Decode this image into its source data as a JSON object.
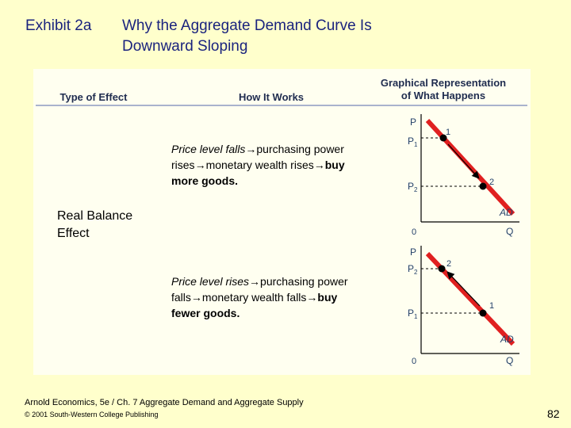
{
  "title": {
    "label": "Exhibit 2a",
    "line1": "Why the Aggregate Demand Curve Is",
    "line2": "Downward Sloping"
  },
  "table": {
    "headers": {
      "type_of_effect": "Type of Effect",
      "how_it_works": "How It Works",
      "graph_line1": "Graphical Representation",
      "graph_line2": "of What Happens"
    },
    "effect_name": {
      "line1": "Real Balance",
      "line2": "Effect"
    },
    "rows": [
      {
        "lead": "Price level falls",
        "part1": "purchasing power",
        "part2": "rises",
        "part3": "monetary wealth rises",
        "part4": "buy",
        "part5": "more goods."
      },
      {
        "lead": "Price level rises",
        "part1": "purchasing power",
        "part2": "falls",
        "part3": "monetary wealth falls",
        "part4": "buy",
        "part5": "fewer goods."
      }
    ],
    "arrow_glyph": "→"
  },
  "graphs": [
    {
      "y_axis": "P",
      "x_axis": "Q",
      "origin": "0",
      "curve": "AD",
      "upper_price": "P",
      "upper_sub": "1",
      "lower_price": "P",
      "lower_sub": "2",
      "upper_point": "1",
      "lower_point": "2",
      "movement": "down"
    },
    {
      "y_axis": "P",
      "x_axis": "Q",
      "origin": "0",
      "curve": "AD",
      "upper_price": "P",
      "upper_sub": "2",
      "lower_price": "P",
      "lower_sub": "1",
      "upper_point": "2",
      "lower_point": "1",
      "movement": "up"
    }
  ],
  "colors": {
    "slide_bg": "#ffffcc",
    "title": "#1a237e",
    "curve": "#e02020",
    "axis_label": "#24416a"
  },
  "footer": {
    "line1": "Arnold Economics, 5e / Ch. 7 Aggregate Demand and Aggregate Supply",
    "line2": "© 2001 South-Western College Publishing",
    "page": "82"
  }
}
